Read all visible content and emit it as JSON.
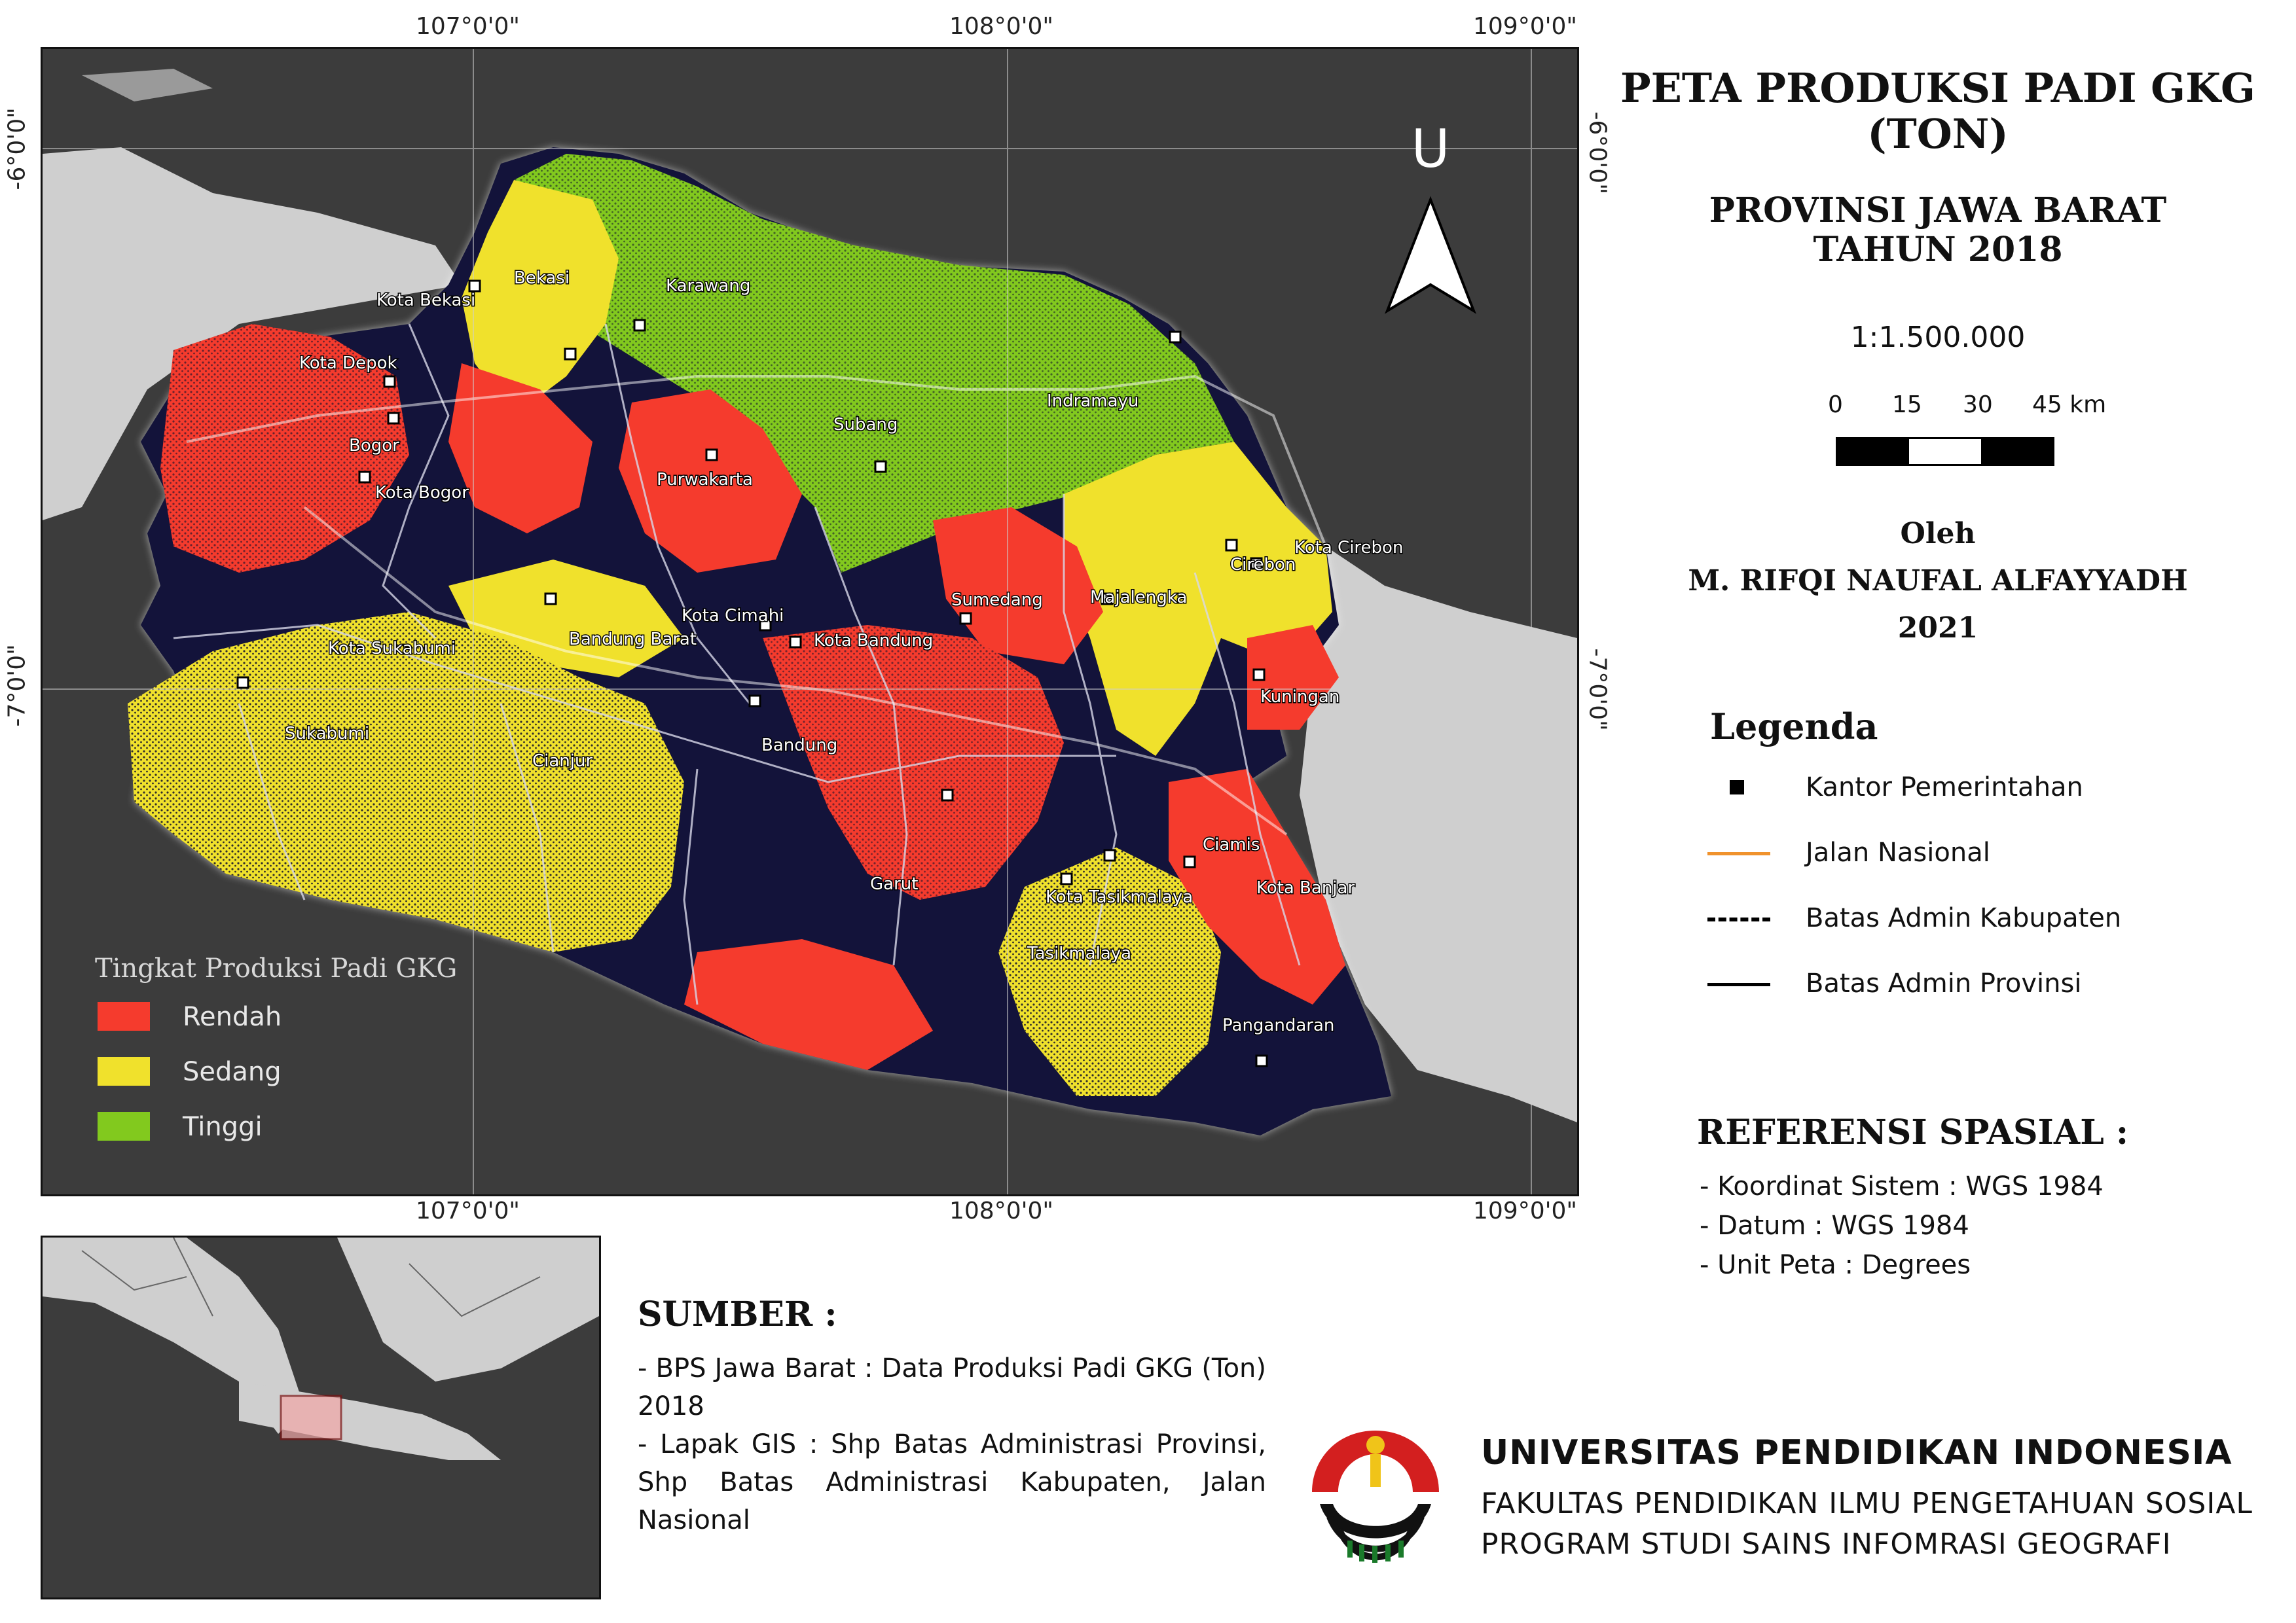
{
  "title": {
    "line1": "PETA PRODUKSI PADI GKG",
    "line2": "(TON)",
    "sub1": "PROVINSI JAWA BARAT",
    "sub2": "TAHUN 2018"
  },
  "scale": {
    "ratio": "1:1.500.000",
    "ticks": [
      "0",
      "15",
      "30",
      "45 km"
    ]
  },
  "author": {
    "by": "Oleh",
    "name": "M.  RIFQI NAUFAL ALFAYYADH",
    "year": "2021"
  },
  "coordinates": {
    "lon": [
      "107°0'0\"",
      "108°0'0\"",
      "109°0'0\""
    ],
    "lat": [
      "-6°0'0\"",
      "-7°0'0\""
    ]
  },
  "north_arrow": {
    "label": "U",
    "icon": "north-arrow-icon"
  },
  "places": [
    "Bekasi",
    "Kota Bekasi",
    "Karawang",
    "Kota Depok",
    "Bogor",
    "Kota Bogor",
    "Subang",
    "Indramayu",
    "Purwakarta",
    "Kota Cirebon",
    "Cirebon",
    "Majalengka",
    "Sumedang",
    "Kota Cimahi",
    "Kota Bandung",
    "Bandung Barat",
    "Kota Sukabumi",
    "Kuningan",
    "Bandung",
    "Sukabumi",
    "Cianjur",
    "Ciamis",
    "Garut",
    "Kota Tasikmalaya",
    "Kota Banjar",
    "Tasikmalaya",
    "Pangandaran"
  ],
  "production_legend": {
    "title": "Tingkat Produksi Padi GKG",
    "classes": [
      {
        "label": "Rendah",
        "color": "#f53b2d"
      },
      {
        "label": "Sedang",
        "color": "#f0e12c"
      },
      {
        "label": "Tinggi",
        "color": "#82c91e"
      }
    ]
  },
  "legend": {
    "title": "Legenda",
    "items": [
      {
        "label": "Kantor Pemerintahan",
        "symbol": "square-marker-icon"
      },
      {
        "label": "Jalan Nasional",
        "symbol": "orange-line-icon",
        "color": "#f0922c"
      },
      {
        "label": "Batas Admin Kabupaten",
        "symbol": "dashed-line-icon"
      },
      {
        "label": "Batas Admin Provinsi",
        "symbol": "solid-line-icon"
      }
    ]
  },
  "spatial_reference": {
    "title": "REFERENSI SPASIAL :",
    "items": [
      "- Koordinat Sistem : WGS 1984",
      "- Datum : WGS 1984",
      "- Unit Peta : Degrees"
    ]
  },
  "source": {
    "title": "SUMBER :",
    "items": [
      "- BPS Jawa Barat : Data Produksi Padi GKG (Ton) 2018",
      "- Lapak GIS : Shp Batas Administrasi Provinsi, Shp Batas Administrasi Kabupaten, Jalan Nasional"
    ]
  },
  "institution": {
    "name": "UNIVERSITAS PENDIDIKAN INDONESIA",
    "faculty": "FAKULTAS PENDIDIKAN ILMU PENGETAHUAN SOSIAL",
    "program": "PROGRAM STUDI SAINS INFOMRASI GEOGRAFI",
    "logo": "upi-logo-icon"
  }
}
